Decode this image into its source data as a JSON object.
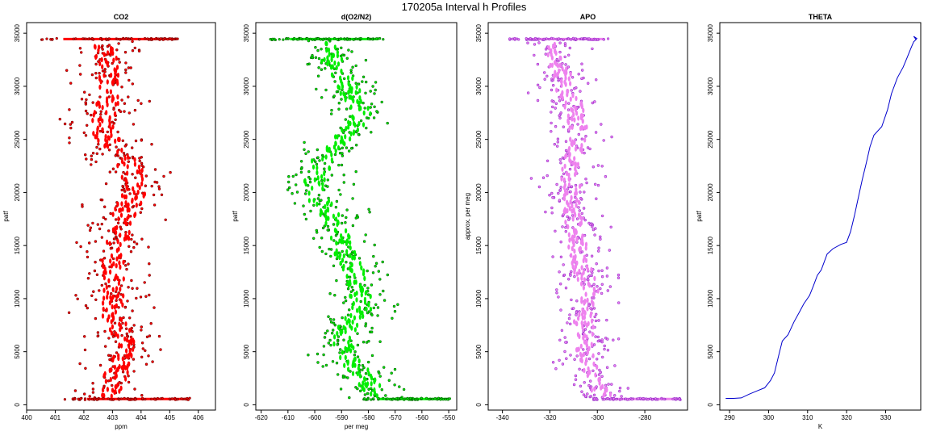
{
  "title": "170205a   Interval h Profiles",
  "chart_data": [
    {
      "type": "scatter",
      "title": "CO2",
      "xlabel": "ppm",
      "ylabel": "patf",
      "xlim": [
        400,
        406.6
      ],
      "ylim": [
        -500,
        36000
      ],
      "xticks": [
        400,
        401,
        402,
        403,
        404,
        405,
        406
      ],
      "yticks": [
        0,
        5000,
        10000,
        15000,
        20000,
        25000,
        30000,
        35000
      ],
      "colors": {
        "main": "#ff0000",
        "outline": "#7a0000"
      },
      "profile": [
        [
          0,
          403.0
        ],
        [
          2000,
          403.0
        ],
        [
          4000,
          403.3
        ],
        [
          6000,
          403.5
        ],
        [
          8000,
          403.0
        ],
        [
          10000,
          403.0
        ],
        [
          12000,
          403.1
        ],
        [
          14000,
          403.0
        ],
        [
          16000,
          403.2
        ],
        [
          18000,
          403.4
        ],
        [
          20000,
          403.8
        ],
        [
          22000,
          403.7
        ],
        [
          24000,
          403.1
        ],
        [
          26000,
          402.6
        ],
        [
          28000,
          402.8
        ],
        [
          30000,
          402.9
        ],
        [
          32000,
          402.8
        ],
        [
          34000,
          402.7
        ],
        [
          34500,
          402.9
        ]
      ],
      "spread": 0.9,
      "baseline_bands": [
        {
          "y": 550,
          "range": [
            401.3,
            405.8
          ]
        },
        {
          "y": 34450,
          "range": [
            400.4,
            405.3
          ]
        }
      ]
    },
    {
      "type": "scatter",
      "title": "d(O2/N2)",
      "xlabel": "per meg",
      "ylabel": "patf",
      "xlim": [
        -622,
        -547
      ],
      "ylim": [
        -500,
        36000
      ],
      "xticks": [
        -620,
        -610,
        -600,
        -590,
        -580,
        -570,
        -560,
        -550
      ],
      "yticks": [
        0,
        5000,
        10000,
        15000,
        20000,
        25000,
        30000,
        35000
      ],
      "colors": {
        "main": "#00ee00",
        "outline": "#006400"
      },
      "profile": [
        [
          0,
          -575
        ],
        [
          1500,
          -578
        ],
        [
          3000,
          -583
        ],
        [
          5000,
          -590
        ],
        [
          7000,
          -588
        ],
        [
          9000,
          -583
        ],
        [
          11000,
          -583
        ],
        [
          13000,
          -586
        ],
        [
          15000,
          -590
        ],
        [
          17000,
          -592
        ],
        [
          19000,
          -598
        ],
        [
          21000,
          -600
        ],
        [
          23000,
          -597
        ],
        [
          25000,
          -590
        ],
        [
          27000,
          -582
        ],
        [
          29000,
          -586
        ],
        [
          31000,
          -590
        ],
        [
          33000,
          -595
        ],
        [
          34400,
          -596
        ]
      ],
      "spread": 9,
      "baseline_bands": [
        {
          "y": 550,
          "range": [
            -582,
            -549
          ]
        },
        {
          "y": 34450,
          "range": [
            -617,
            -574
          ]
        }
      ]
    },
    {
      "type": "scatter",
      "title": "APO",
      "xlabel": "",
      "ylabel": "approx. per meg",
      "xlim": [
        -346,
        -262
      ],
      "ylim": [
        -500,
        36000
      ],
      "xticks": [
        -340,
        -320,
        -300,
        -280
      ],
      "yticks": [
        0,
        5000,
        10000,
        15000,
        20000,
        25000,
        30000,
        35000
      ],
      "colors": {
        "main": "#ee82ee",
        "outline": "#9932cc"
      },
      "profile": [
        [
          0,
          -295
        ],
        [
          2000,
          -300
        ],
        [
          4000,
          -305
        ],
        [
          6000,
          -305
        ],
        [
          8000,
          -306
        ],
        [
          10000,
          -303
        ],
        [
          12000,
          -305
        ],
        [
          14000,
          -308
        ],
        [
          16000,
          -309
        ],
        [
          18000,
          -310
        ],
        [
          20000,
          -310
        ],
        [
          22000,
          -312
        ],
        [
          24000,
          -310
        ],
        [
          26000,
          -308
        ],
        [
          28000,
          -310
        ],
        [
          30000,
          -314
        ],
        [
          32000,
          -316
        ],
        [
          34000,
          -318
        ],
        [
          34450,
          -320
        ]
      ],
      "spread": 9,
      "baseline_bands": [
        {
          "y": 550,
          "range": [
            -302,
            -265
          ]
        },
        {
          "y": 34450,
          "range": [
            -337,
            -295
          ]
        }
      ]
    },
    {
      "type": "line",
      "title": "THETA",
      "xlabel": "K",
      "ylabel": "patf",
      "xlim": [
        287.5,
        339
      ],
      "ylim": [
        -500,
        36000
      ],
      "xticks": [
        290,
        300,
        310,
        320,
        330
      ],
      "yticks": [
        0,
        5000,
        10000,
        15000,
        20000,
        25000,
        30000,
        35000
      ],
      "colors": {
        "main": "#0000cd"
      },
      "points": [
        [
          289,
          600
        ],
        [
          291,
          600
        ],
        [
          293,
          650
        ],
        [
          295,
          1000
        ],
        [
          297,
          1300
        ],
        [
          299,
          1600
        ],
        [
          300.5,
          2300
        ],
        [
          301.5,
          3000
        ],
        [
          302.5,
          4500
        ],
        [
          303.5,
          6000
        ],
        [
          305,
          6600
        ],
        [
          306.5,
          7800
        ],
        [
          308,
          8800
        ],
        [
          309,
          9500
        ],
        [
          310.5,
          10300
        ],
        [
          311.5,
          11200
        ],
        [
          312.5,
          12200
        ],
        [
          313.5,
          12700
        ],
        [
          315,
          14200
        ],
        [
          316.5,
          14700
        ],
        [
          318.5,
          15100
        ],
        [
          320,
          15300
        ],
        [
          321,
          16300
        ],
        [
          322,
          17800
        ],
        [
          323,
          19500
        ],
        [
          324,
          21200
        ],
        [
          325,
          22700
        ],
        [
          326,
          24300
        ],
        [
          327,
          25400
        ],
        [
          329,
          26200
        ],
        [
          330.5,
          27800
        ],
        [
          331.5,
          29300
        ],
        [
          333,
          30800
        ],
        [
          334.5,
          31800
        ],
        [
          335.5,
          32700
        ],
        [
          336.5,
          33600
        ],
        [
          337.2,
          34200
        ],
        [
          337.8,
          34400
        ],
        [
          337.2,
          34700
        ],
        [
          338,
          34500
        ],
        [
          337.5,
          34300
        ]
      ]
    }
  ]
}
